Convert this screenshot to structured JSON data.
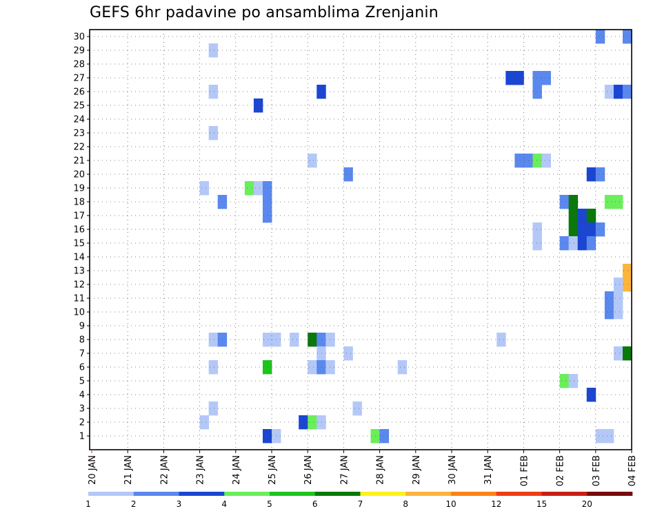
{
  "chart_data": {
    "type": "heatmap",
    "title": "GEFS 6hr padavine po ansamblima Zrenjanin",
    "xlabel": "",
    "ylabel": "",
    "y_tick_labels": [
      "1",
      "2",
      "3",
      "4",
      "5",
      "6",
      "7",
      "8",
      "9",
      "10",
      "11",
      "12",
      "13",
      "14",
      "15",
      "16",
      "17",
      "18",
      "19",
      "20",
      "21",
      "22",
      "23",
      "24",
      "25",
      "26",
      "27",
      "28",
      "29",
      "30"
    ],
    "x_tick_labels": [
      "20 JAN",
      "21 JAN",
      "22 JAN",
      "23 JAN",
      "24 JAN",
      "25 JAN",
      "26 JAN",
      "27 JAN",
      "28 JAN",
      "29 JAN",
      "30 JAN",
      "31 JAN",
      "01 FEB",
      "02 FEB",
      "03 FEB",
      "04 FEB"
    ],
    "x_unit": "6hr step from 20 JAN 00Z",
    "x_range_steps": [
      0,
      60
    ],
    "grid": true,
    "legend": {
      "placement": "bottom",
      "labels": [
        "1",
        "2",
        "3",
        "4",
        "5",
        "6",
        "7",
        "8",
        "10",
        "12",
        "15",
        "20"
      ],
      "colors": [
        "#b4c8f8",
        "#5a88ee",
        "#1a46d2",
        "#6aee5a",
        "#1cc51c",
        "#0a780a",
        "#fcf21a",
        "#fcb43c",
        "#fc8214",
        "#ee3c14",
        "#c81e14",
        "#780a0a"
      ]
    },
    "cells": [
      [
        30,
        56,
        1
      ],
      [
        30,
        59,
        1
      ],
      [
        29,
        13,
        0
      ],
      [
        27,
        46,
        2
      ],
      [
        27,
        47,
        2
      ],
      [
        27,
        49,
        1
      ],
      [
        27,
        50,
        1
      ],
      [
        26,
        13,
        0
      ],
      [
        26,
        25,
        2
      ],
      [
        26,
        49,
        1
      ],
      [
        26,
        57,
        0
      ],
      [
        26,
        58,
        2
      ],
      [
        26,
        59,
        1
      ],
      [
        25,
        18,
        2
      ],
      [
        23,
        13,
        0
      ],
      [
        21,
        24,
        0
      ],
      [
        21,
        47,
        1
      ],
      [
        21,
        48,
        1
      ],
      [
        21,
        49,
        3
      ],
      [
        21,
        50,
        0
      ],
      [
        20,
        28,
        1
      ],
      [
        20,
        55,
        2
      ],
      [
        20,
        56,
        1
      ],
      [
        19,
        12,
        0
      ],
      [
        19,
        17,
        3
      ],
      [
        19,
        18,
        0
      ],
      [
        19,
        19,
        1
      ],
      [
        18,
        14,
        1
      ],
      [
        18,
        19,
        1
      ],
      [
        18,
        52,
        1
      ],
      [
        18,
        53,
        5
      ],
      [
        18,
        57,
        3
      ],
      [
        18,
        58,
        3
      ],
      [
        17,
        19,
        1
      ],
      [
        17,
        53,
        5
      ],
      [
        17,
        54,
        2
      ],
      [
        17,
        55,
        5
      ],
      [
        16,
        49,
        0
      ],
      [
        16,
        53,
        5
      ],
      [
        16,
        54,
        2
      ],
      [
        16,
        55,
        2
      ],
      [
        16,
        56,
        1
      ],
      [
        15,
        49,
        0
      ],
      [
        15,
        52,
        1
      ],
      [
        15,
        53,
        0
      ],
      [
        15,
        54,
        2
      ],
      [
        15,
        55,
        1
      ],
      [
        13,
        59,
        7
      ],
      [
        12,
        59,
        7
      ],
      [
        12,
        58,
        0
      ],
      [
        11,
        57,
        1
      ],
      [
        11,
        58,
        0
      ],
      [
        10,
        57,
        1
      ],
      [
        10,
        58,
        0
      ],
      [
        8,
        13,
        0
      ],
      [
        8,
        14,
        1
      ],
      [
        8,
        19,
        0
      ],
      [
        8,
        20,
        0
      ],
      [
        8,
        22,
        0
      ],
      [
        8,
        24,
        5
      ],
      [
        8,
        25,
        1
      ],
      [
        8,
        26,
        0
      ],
      [
        8,
        45,
        0
      ],
      [
        7,
        25,
        0
      ],
      [
        7,
        28,
        0
      ],
      [
        7,
        58,
        0
      ],
      [
        7,
        59,
        5
      ],
      [
        6,
        13,
        0
      ],
      [
        6,
        19,
        4
      ],
      [
        6,
        24,
        0
      ],
      [
        6,
        25,
        1
      ],
      [
        6,
        26,
        0
      ],
      [
        6,
        34,
        0
      ],
      [
        5,
        52,
        3
      ],
      [
        5,
        53,
        0
      ],
      [
        4,
        55,
        2
      ],
      [
        3,
        13,
        0
      ],
      [
        3,
        29,
        0
      ],
      [
        2,
        12,
        0
      ],
      [
        2,
        23,
        2
      ],
      [
        2,
        24,
        3
      ],
      [
        2,
        25,
        0
      ],
      [
        1,
        19,
        2
      ],
      [
        1,
        20,
        0
      ],
      [
        1,
        31,
        3
      ],
      [
        1,
        32,
        1
      ],
      [
        1,
        56,
        0
      ],
      [
        1,
        57,
        0
      ]
    ]
  }
}
